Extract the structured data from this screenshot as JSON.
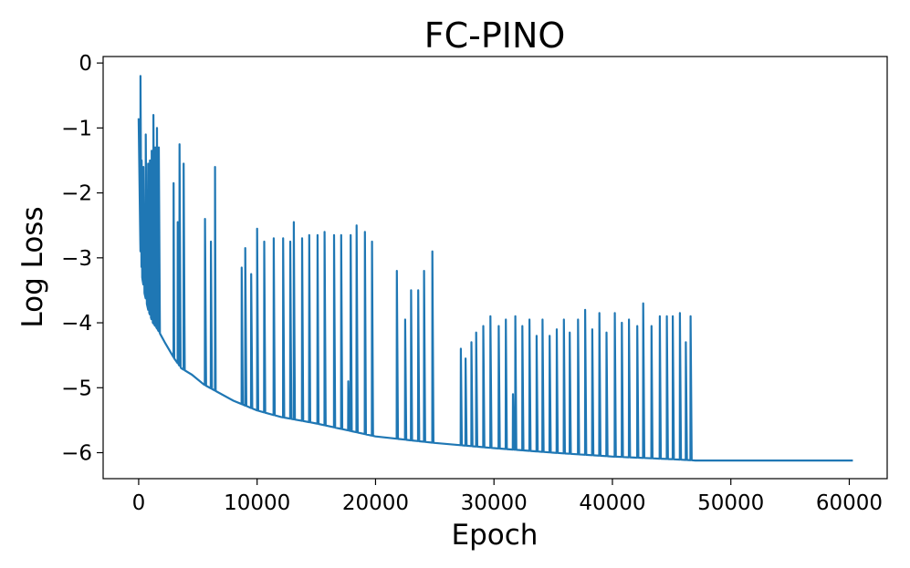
{
  "chart_data": {
    "type": "line",
    "title": "FC-PINO",
    "xlabel": "Epoch",
    "ylabel": "Log Loss",
    "xlim": [
      -3000,
      63200
    ],
    "ylim": [
      -6.4,
      0.1
    ],
    "xticks": [
      {
        "value": 0,
        "label": "0"
      },
      {
        "value": 10000,
        "label": "10000"
      },
      {
        "value": 20000,
        "label": "20000"
      },
      {
        "value": 30000,
        "label": "30000"
      },
      {
        "value": 40000,
        "label": "40000"
      },
      {
        "value": 50000,
        "label": "50000"
      },
      {
        "value": 60000,
        "label": "60000"
      }
    ],
    "yticks": [
      {
        "value": 0,
        "label": "0"
      },
      {
        "value": -1,
        "label": "−1"
      },
      {
        "value": -2,
        "label": "−2"
      },
      {
        "value": -3,
        "label": "−3"
      },
      {
        "value": -4,
        "label": "−4"
      },
      {
        "value": -5,
        "label": "−5"
      },
      {
        "value": -6,
        "label": "−6"
      }
    ],
    "grid": false,
    "legend": "none",
    "line_color": "#1f77b4",
    "series": [
      {
        "baseline": [
          [
            0,
            -0.85
          ],
          [
            150,
            -2.9
          ],
          [
            300,
            -3.3
          ],
          [
            500,
            -3.55
          ],
          [
            800,
            -3.8
          ],
          [
            1200,
            -4.0
          ],
          [
            1600,
            -4.1
          ],
          [
            2200,
            -4.3
          ],
          [
            3000,
            -4.55
          ],
          [
            3600,
            -4.7
          ],
          [
            4500,
            -4.8
          ],
          [
            5500,
            -4.95
          ],
          [
            6500,
            -5.05
          ],
          [
            8000,
            -5.2
          ],
          [
            10000,
            -5.35
          ],
          [
            12000,
            -5.45
          ],
          [
            15000,
            -5.55
          ],
          [
            18000,
            -5.67
          ],
          [
            20000,
            -5.75
          ],
          [
            25000,
            -5.85
          ],
          [
            30000,
            -5.93
          ],
          [
            35000,
            -6.0
          ],
          [
            40000,
            -6.06
          ],
          [
            45000,
            -6.1
          ],
          [
            47000,
            -6.12
          ],
          [
            50000,
            -6.12
          ],
          [
            60300,
            -6.12
          ]
        ],
        "spikes": [
          [
            150,
            -0.2
          ],
          [
            250,
            -1.5
          ],
          [
            400,
            -1.6
          ],
          [
            600,
            -1.1
          ],
          [
            800,
            -1.55
          ],
          [
            950,
            -1.5
          ],
          [
            1100,
            -1.35
          ],
          [
            1250,
            -0.8
          ],
          [
            1400,
            -1.3
          ],
          [
            1550,
            -1.0
          ],
          [
            1700,
            -1.3
          ],
          [
            2950,
            -1.85
          ],
          [
            3300,
            -2.45
          ],
          [
            3450,
            -1.25
          ],
          [
            3800,
            -1.55
          ],
          [
            5600,
            -2.4
          ],
          [
            6100,
            -2.75
          ],
          [
            6450,
            -1.6
          ],
          [
            8700,
            -3.15
          ],
          [
            9000,
            -2.85
          ],
          [
            9500,
            -3.25
          ],
          [
            10000,
            -2.55
          ],
          [
            10600,
            -2.75
          ],
          [
            11400,
            -2.7
          ],
          [
            12200,
            -2.7
          ],
          [
            12800,
            -2.75
          ],
          [
            13100,
            -2.45
          ],
          [
            13800,
            -2.7
          ],
          [
            14400,
            -2.65
          ],
          [
            15100,
            -2.65
          ],
          [
            15700,
            -2.6
          ],
          [
            16500,
            -2.65
          ],
          [
            17100,
            -2.65
          ],
          [
            17700,
            -4.9
          ],
          [
            17900,
            -2.65
          ],
          [
            18400,
            -2.5
          ],
          [
            19100,
            -2.6
          ],
          [
            19700,
            -2.75
          ],
          [
            21800,
            -3.2
          ],
          [
            22500,
            -3.95
          ],
          [
            23000,
            -3.5
          ],
          [
            23600,
            -3.5
          ],
          [
            24100,
            -3.2
          ],
          [
            24800,
            -2.9
          ],
          [
            27200,
            -4.4
          ],
          [
            27600,
            -4.55
          ],
          [
            28100,
            -4.3
          ],
          [
            28500,
            -4.15
          ],
          [
            29100,
            -4.05
          ],
          [
            29700,
            -3.9
          ],
          [
            30400,
            -4.05
          ],
          [
            31000,
            -3.95
          ],
          [
            31600,
            -5.1
          ],
          [
            31800,
            -3.9
          ],
          [
            32400,
            -4.05
          ],
          [
            33000,
            -3.95
          ],
          [
            33600,
            -4.2
          ],
          [
            34100,
            -3.95
          ],
          [
            34700,
            -4.2
          ],
          [
            35300,
            -4.1
          ],
          [
            35900,
            -3.95
          ],
          [
            36400,
            -4.15
          ],
          [
            37100,
            -3.95
          ],
          [
            37700,
            -3.8
          ],
          [
            38300,
            -4.1
          ],
          [
            38900,
            -3.85
          ],
          [
            39500,
            -4.15
          ],
          [
            40200,
            -3.85
          ],
          [
            40800,
            -4.0
          ],
          [
            41400,
            -3.95
          ],
          [
            42100,
            -4.05
          ],
          [
            42600,
            -3.7
          ],
          [
            43300,
            -4.05
          ],
          [
            44000,
            -3.9
          ],
          [
            44600,
            -3.9
          ],
          [
            45100,
            -3.9
          ],
          [
            45700,
            -3.85
          ],
          [
            46200,
            -4.3
          ],
          [
            46600,
            -3.9
          ]
        ]
      }
    ]
  }
}
